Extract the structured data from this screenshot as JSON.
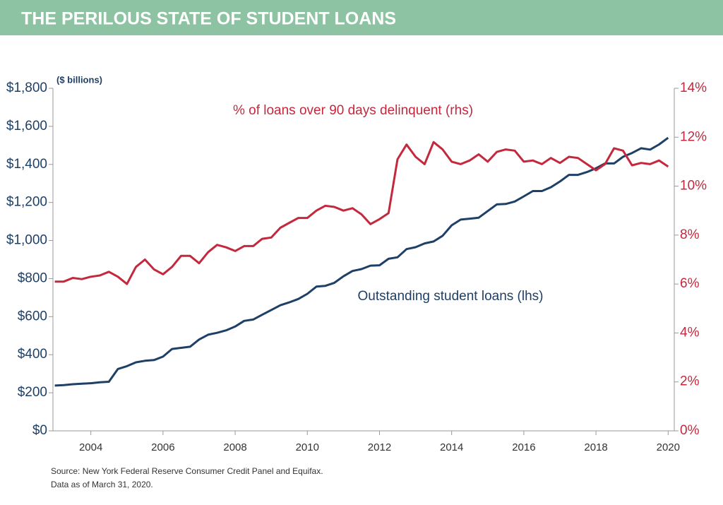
{
  "chart_data": {
    "type": "line",
    "title": "THE PERILOUS STATE OF STUDENT LOANS",
    "y_axis_label": "($ billions)",
    "source": "Source: New York Federal Reserve Consumer Credit Panel and Equifax.",
    "note": "Data as of March 31, 2020.",
    "x": [
      2003,
      2003.25,
      2003.5,
      2003.75,
      2004,
      2004.25,
      2004.5,
      2004.75,
      2005,
      2005.25,
      2005.5,
      2005.75,
      2006,
      2006.25,
      2006.5,
      2006.75,
      2007,
      2007.25,
      2007.5,
      2007.75,
      2008,
      2008.25,
      2008.5,
      2008.75,
      2009,
      2009.25,
      2009.5,
      2009.75,
      2010,
      2010.25,
      2010.5,
      2010.75,
      2011,
      2011.25,
      2011.5,
      2011.75,
      2012,
      2012.25,
      2012.5,
      2012.75,
      2013,
      2013.25,
      2013.5,
      2013.75,
      2014,
      2014.25,
      2014.5,
      2014.75,
      2015,
      2015.25,
      2015.5,
      2015.75,
      2016,
      2016.25,
      2016.5,
      2016.75,
      2017,
      2017.25,
      2017.5,
      2017.75,
      2018,
      2018.25,
      2018.5,
      2018.75,
      2019,
      2019.25,
      2019.5,
      2019.75,
      2020
    ],
    "xlim": [
      2002.95,
      2020.17
    ],
    "xticks": [
      2004,
      2006,
      2008,
      2010,
      2012,
      2014,
      2016,
      2018,
      2020
    ],
    "ylim": [
      0,
      1800
    ],
    "yticks": [
      {
        "value": 0,
        "label": "$0"
      },
      {
        "value": 200,
        "label": "$200"
      },
      {
        "value": 400,
        "label": "$400"
      },
      {
        "value": 600,
        "label": "$600"
      },
      {
        "value": 800,
        "label": "$800"
      },
      {
        "value": 1000,
        "label": "$1,000"
      },
      {
        "value": 1200,
        "label": "$1,200"
      },
      {
        "value": 1400,
        "label": "$1,400"
      },
      {
        "value": 1600,
        "label": "$1,600"
      },
      {
        "value": 1800,
        "label": "$1,800"
      }
    ],
    "y2lim": [
      0,
      14
    ],
    "y2ticks": [
      {
        "value": 0,
        "label": "0%"
      },
      {
        "value": 2,
        "label": "2%"
      },
      {
        "value": 4,
        "label": "4%"
      },
      {
        "value": 6,
        "label": "6%"
      },
      {
        "value": 8,
        "label": "8%"
      },
      {
        "value": 10,
        "label": "10%"
      },
      {
        "value": 12,
        "label": "12%"
      },
      {
        "value": 14,
        "label": "14%"
      }
    ],
    "series": [
      {
        "name": "Outstanding student loans (lhs)",
        "color": "#1e3f66",
        "axis": "y",
        "values": [
          238,
          240,
          245,
          248,
          250,
          255,
          258,
          325,
          340,
          360,
          368,
          372,
          390,
          430,
          436,
          442,
          480,
          505,
          515,
          528,
          548,
          578,
          585,
          610,
          635,
          660,
          675,
          693,
          720,
          758,
          762,
          778,
          812,
          840,
          850,
          868,
          870,
          904,
          912,
          955,
          965,
          985,
          995,
          1025,
          1080,
          1110,
          1115,
          1120,
          1155,
          1190,
          1192,
          1205,
          1232,
          1260,
          1260,
          1280,
          1310,
          1345,
          1345,
          1360,
          1380,
          1405,
          1405,
          1440,
          1460,
          1485,
          1478,
          1505,
          1540
        ]
      },
      {
        "name": "% of loans over 90 days delinquent (rhs)",
        "color": "#c4283d",
        "axis": "y2",
        "values": [
          6.1,
          6.1,
          6.25,
          6.2,
          6.3,
          6.35,
          6.5,
          6.3,
          6.0,
          6.7,
          7.0,
          6.6,
          6.4,
          6.7,
          7.15,
          7.15,
          6.85,
          7.3,
          7.6,
          7.5,
          7.35,
          7.55,
          7.55,
          7.85,
          7.9,
          8.3,
          8.5,
          8.7,
          8.7,
          9.0,
          9.2,
          9.15,
          9.0,
          9.1,
          8.85,
          8.45,
          8.65,
          8.9,
          11.1,
          11.7,
          11.2,
          10.9,
          11.8,
          11.5,
          11.0,
          10.9,
          11.05,
          11.3,
          11.0,
          11.4,
          11.5,
          11.45,
          11.0,
          11.05,
          10.9,
          11.15,
          10.95,
          11.2,
          11.15,
          10.9,
          10.65,
          10.9,
          11.55,
          11.45,
          10.85,
          10.95,
          10.9,
          11.05,
          10.8
        ]
      }
    ]
  }
}
